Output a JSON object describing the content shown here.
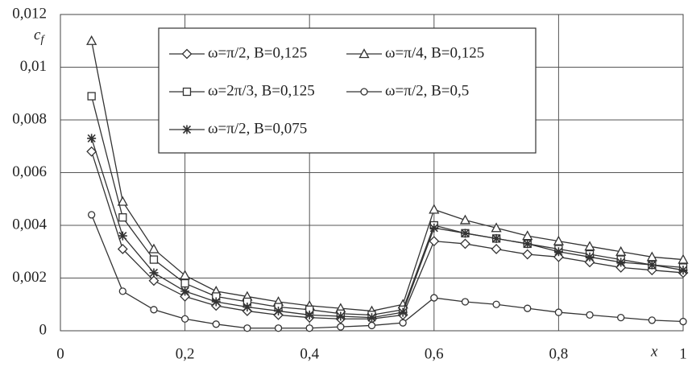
{
  "chart_data": {
    "type": "line",
    "x_label": "x",
    "y_label": {
      "main": "c",
      "sub": "f"
    },
    "x": [
      0.05,
      0.1,
      0.15,
      0.2,
      0.25,
      0.3,
      0.35,
      0.4,
      0.45,
      0.5,
      0.55,
      0.6,
      0.65,
      0.7,
      0.75,
      0.8,
      0.85,
      0.9,
      0.95,
      1
    ],
    "series": [
      {
        "name": "ω=π/2, B=0,125",
        "color": "#333333",
        "marker": "diamond",
        "values": [
          0.0068,
          0.0031,
          0.0019,
          0.0013,
          0.00095,
          0.00075,
          0.0006,
          0.0005,
          0.00045,
          0.00045,
          0.0006,
          0.0034,
          0.0033,
          0.0031,
          0.0029,
          0.0028,
          0.0026,
          0.0024,
          0.0023,
          0.0022
        ]
      },
      {
        "name": "ω=π/4, B=0,125",
        "color": "#333333",
        "marker": "triangle",
        "values": [
          0.011,
          0.0049,
          0.0031,
          0.0021,
          0.0015,
          0.0013,
          0.0011,
          0.00095,
          0.00085,
          0.00075,
          0.001,
          0.0046,
          0.0042,
          0.0039,
          0.0036,
          0.0034,
          0.0032,
          0.003,
          0.0028,
          0.0027
        ]
      },
      {
        "name": "ω=2π/3, B=0,125",
        "color": "#333333",
        "marker": "square",
        "values": [
          0.0089,
          0.0043,
          0.0027,
          0.0018,
          0.0013,
          0.0011,
          0.0009,
          0.0008,
          0.00065,
          0.0006,
          0.0008,
          0.004,
          0.0037,
          0.0035,
          0.0033,
          0.0031,
          0.0029,
          0.0027,
          0.0025,
          0.0024
        ]
      },
      {
        "name": "ω=π/2, B=0,5",
        "color": "#333333",
        "marker": "circle",
        "values": [
          0.0044,
          0.0015,
          0.0008,
          0.00045,
          0.00025,
          0.0001,
          0.0001,
          0.0001,
          0.00015,
          0.0002,
          0.0003,
          0.00125,
          0.0011,
          0.001,
          0.00085,
          0.0007,
          0.0006,
          0.0005,
          0.0004,
          0.00035
        ]
      },
      {
        "name": "ω=π/2, B=0,075",
        "color": "#333333",
        "marker": "star",
        "values": [
          0.0073,
          0.0036,
          0.0022,
          0.0015,
          0.0011,
          0.0009,
          0.00075,
          0.0006,
          0.00055,
          0.0005,
          0.0007,
          0.0039,
          0.0037,
          0.0035,
          0.0033,
          0.003,
          0.0028,
          0.0026,
          0.0025,
          0.0023
        ]
      }
    ],
    "xlim": [
      0,
      1
    ],
    "xticks": [
      0,
      {
        "value": 0.2,
        "label": "0,2"
      },
      {
        "value": 0.4,
        "label": "0,4"
      },
      {
        "value": 0.6,
        "label": "0,6"
      },
      {
        "value": 0.8,
        "label": "0,8"
      },
      1
    ],
    "ylim": [
      0,
      0.012
    ],
    "yticks": [
      0,
      {
        "value": 0.002,
        "label": "0,002"
      },
      {
        "value": 0.004,
        "label": "0,004"
      },
      {
        "value": 0.006,
        "label": "0,006"
      },
      {
        "value": 0.008,
        "label": "0,008"
      },
      {
        "value": 0.01,
        "label": "0,01"
      },
      {
        "value": 0.012,
        "label": "0,012"
      }
    ],
    "grid": true,
    "legend": "top"
  }
}
